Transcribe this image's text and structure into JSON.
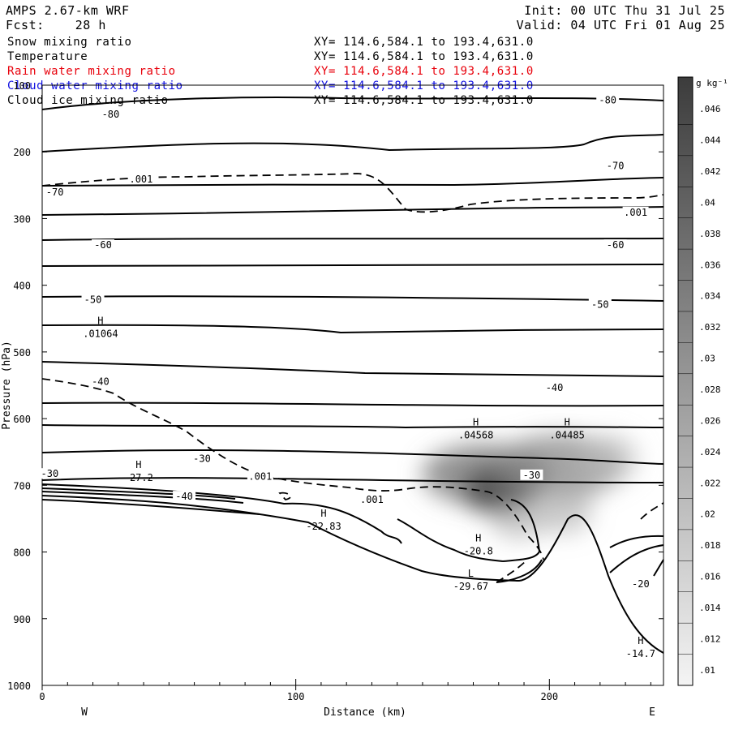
{
  "header": {
    "model": "AMPS 2.67-km WRF",
    "init": "Init: 00 UTC Thu 31 Jul 25",
    "fcst_label": "Fcst:",
    "fcst_value": "28 h",
    "valid": "Valid: 04 UTC Fri 01 Aug 25"
  },
  "fields": [
    {
      "name": "Snow mixing ratio",
      "xy": "XY= 114.6,584.1 to 193.4,631.0",
      "color": "#000000"
    },
    {
      "name": "Temperature",
      "xy": "XY= 114.6,584.1 to 193.4,631.0",
      "color": "#000000"
    },
    {
      "name": "Rain water mixing ratio",
      "xy": "XY= 114.6,584.1 to 193.4,631.0",
      "color": "#e8000b"
    },
    {
      "name": "Cloud water mixing ratio",
      "xy": "XY= 114.6,584.1 to 193.4,631.0",
      "color": "#1010e0"
    },
    {
      "name": "Cloud ice mixing ratio",
      "xy": "XY= 114.6,584.1 to 193.4,631.0",
      "color": "#000000"
    }
  ],
  "chart_data": {
    "type": "contour",
    "xlabel": "Distance (km)",
    "ylabel": "Pressure (hPa)",
    "xlim": [
      0,
      245
    ],
    "ylim": [
      1000,
      100
    ],
    "x_ticks": [
      0,
      100,
      200
    ],
    "y_ticks": [
      100,
      200,
      300,
      400,
      500,
      600,
      700,
      800,
      900,
      1000
    ],
    "x_ends": {
      "left": "W",
      "right": "E"
    },
    "colorbar": {
      "unit": "g kg⁻¹",
      "levels": [
        ".01",
        ".012",
        ".014",
        ".016",
        ".018",
        ".02",
        ".022",
        ".024",
        ".026",
        ".028",
        ".03",
        ".032",
        ".034",
        ".036",
        ".038",
        ".04",
        ".042",
        ".044",
        ".046"
      ]
    },
    "temperature_labels": [
      {
        "text": "-80",
        "x": 27,
        "p": 145
      },
      {
        "text": "-80",
        "x": 223,
        "p": 124
      },
      {
        "text": "-70",
        "x": 5,
        "p": 262
      },
      {
        "text": "-70",
        "x": 226,
        "p": 222
      },
      {
        "text": "-60",
        "x": 24,
        "p": 341
      },
      {
        "text": "-60",
        "x": 226,
        "p": 341
      },
      {
        "text": "-50",
        "x": 20,
        "p": 423
      },
      {
        "text": "-50",
        "x": 220,
        "p": 430
      },
      {
        "text": "-40",
        "x": 23,
        "p": 546
      },
      {
        "text": "-40",
        "x": 202,
        "p": 555
      },
      {
        "text": "-40",
        "x": 56,
        "p": 718
      },
      {
        "text": "-30",
        "x": 63,
        "p": 661
      },
      {
        "text": "-30",
        "x": 193,
        "p": 686
      },
      {
        "text": "-30",
        "x": 3,
        "p": 684
      },
      {
        "text": "-20",
        "x": 236,
        "p": 849
      }
    ],
    "snow_labels": [
      {
        "text": ".001",
        "x": 39,
        "p": 242
      },
      {
        "text": ".001",
        "x": 234,
        "p": 292
      },
      {
        "text": ".001",
        "x": 86,
        "p": 688
      },
      {
        "text": ".001",
        "x": 130,
        "p": 723
      }
    ],
    "extrema": [
      {
        "mark": "H",
        "value": ".01064",
        "x": 23,
        "p": 474
      },
      {
        "mark": "H",
        "value": ".04568",
        "x": 171,
        "p": 626
      },
      {
        "mark": "H",
        "value": ".04485",
        "x": 207,
        "p": 626
      },
      {
        "mark": "H",
        "value": "-27.2",
        "x": 38,
        "p": 690
      },
      {
        "mark": "H",
        "value": "-22.83",
        "x": 111,
        "p": 763
      },
      {
        "mark": "H",
        "value": "-20.8",
        "x": 172,
        "p": 800
      },
      {
        "mark": "L",
        "value": "-29.67",
        "x": 169,
        "p": 853
      },
      {
        "mark": "H",
        "value": "-14.7",
        "x": 236,
        "p": 954
      }
    ]
  }
}
